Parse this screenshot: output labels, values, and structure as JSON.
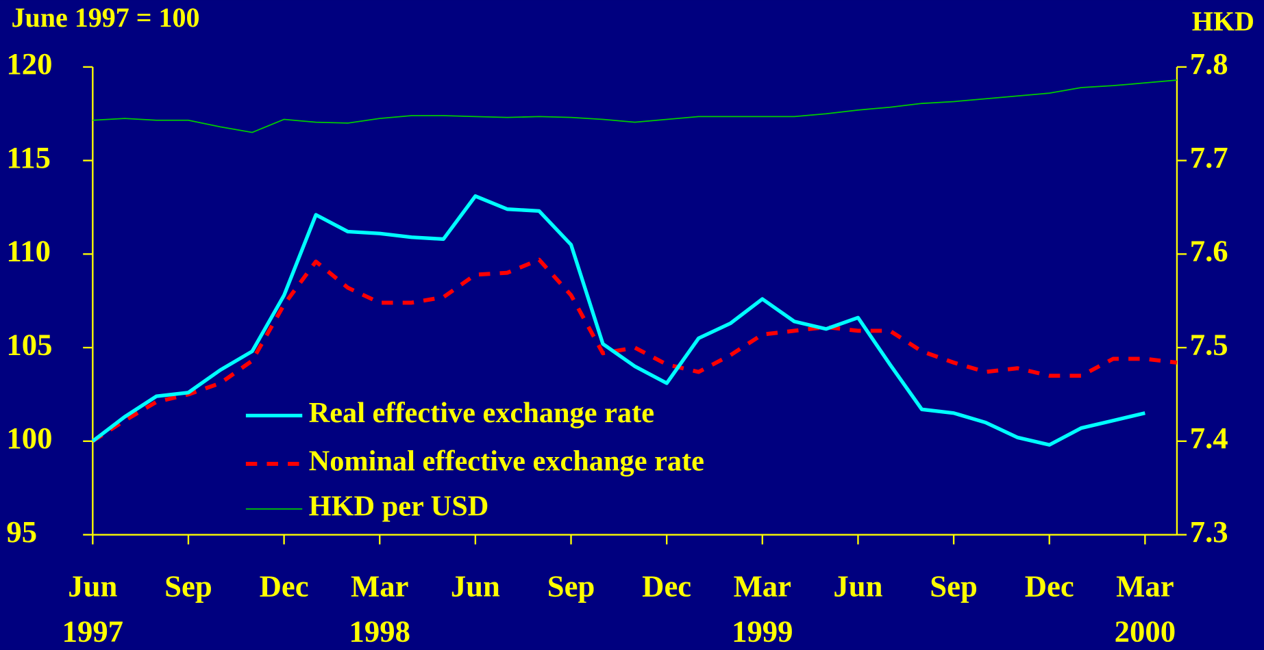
{
  "chart_data": {
    "type": "line",
    "ylabel": "June 1997 = 100",
    "y2label": "HKD",
    "categories": [
      "Jun 1997",
      null,
      null,
      "Sep",
      null,
      null,
      "Dec",
      null,
      null,
      "Mar 1998",
      null,
      null,
      "Jun",
      null,
      null,
      "Sep",
      null,
      null,
      "Dec",
      null,
      null,
      "Mar 1999",
      null,
      null,
      "Jun",
      null,
      null,
      "Sep",
      null,
      null,
      "Dec",
      null,
      null,
      "Mar 2000",
      null
    ],
    "series": [
      {
        "name": "Real effective exchange rate",
        "color": "#00ffff",
        "style": "solid",
        "values": [
          100,
          101.3,
          102.4,
          102.6,
          103.8,
          104.8,
          107.8,
          112.1,
          111.2,
          111.1,
          110.9,
          110.8,
          113.1,
          112.4,
          112.3,
          110.5,
          105.2,
          104.0,
          103.1,
          105.5,
          106.3,
          107.6,
          106.4,
          106.0,
          106.6,
          104.1,
          101.7,
          101.5,
          101.0,
          100.2,
          99.8,
          100.7,
          101.1,
          101.5,
          null
        ]
      },
      {
        "name": "Nominal effective exchange rate",
        "color": "#ff0000",
        "style": "dashed",
        "values": [
          100,
          101.1,
          102.1,
          102.5,
          103.1,
          104.3,
          107.3,
          109.6,
          108.2,
          107.4,
          107.4,
          107.7,
          108.9,
          109.0,
          109.7,
          107.8,
          104.7,
          105.0,
          104.1,
          103.7,
          104.6,
          105.7,
          105.9,
          106.1,
          105.9,
          105.9,
          104.8,
          104.2,
          103.7,
          103.9,
          103.5,
          103.5,
          104.4,
          104.4,
          104.2
        ]
      },
      {
        "name": "HKD per USD",
        "color": "#00cc00",
        "style": "thin",
        "axis": "y2",
        "values": [
          7.743,
          7.745,
          7.743,
          7.743,
          7.736,
          7.73,
          7.744,
          7.741,
          7.74,
          7.745,
          7.748,
          7.748,
          7.747,
          7.746,
          7.747,
          7.746,
          7.744,
          7.741,
          7.744,
          7.747,
          7.747,
          7.747,
          7.747,
          7.75,
          7.754,
          7.757,
          7.761,
          7.763,
          7.766,
          7.769,
          7.772,
          7.778,
          7.78,
          7.783,
          7.786
        ]
      }
    ],
    "ylim": [
      95,
      120
    ],
    "yticks": [
      95,
      100,
      105,
      110,
      115,
      120
    ],
    "y2lim": [
      7.3,
      7.8
    ],
    "y2ticks": [
      7.3,
      7.4,
      7.5,
      7.6,
      7.7,
      7.8
    ],
    "legend": true
  }
}
